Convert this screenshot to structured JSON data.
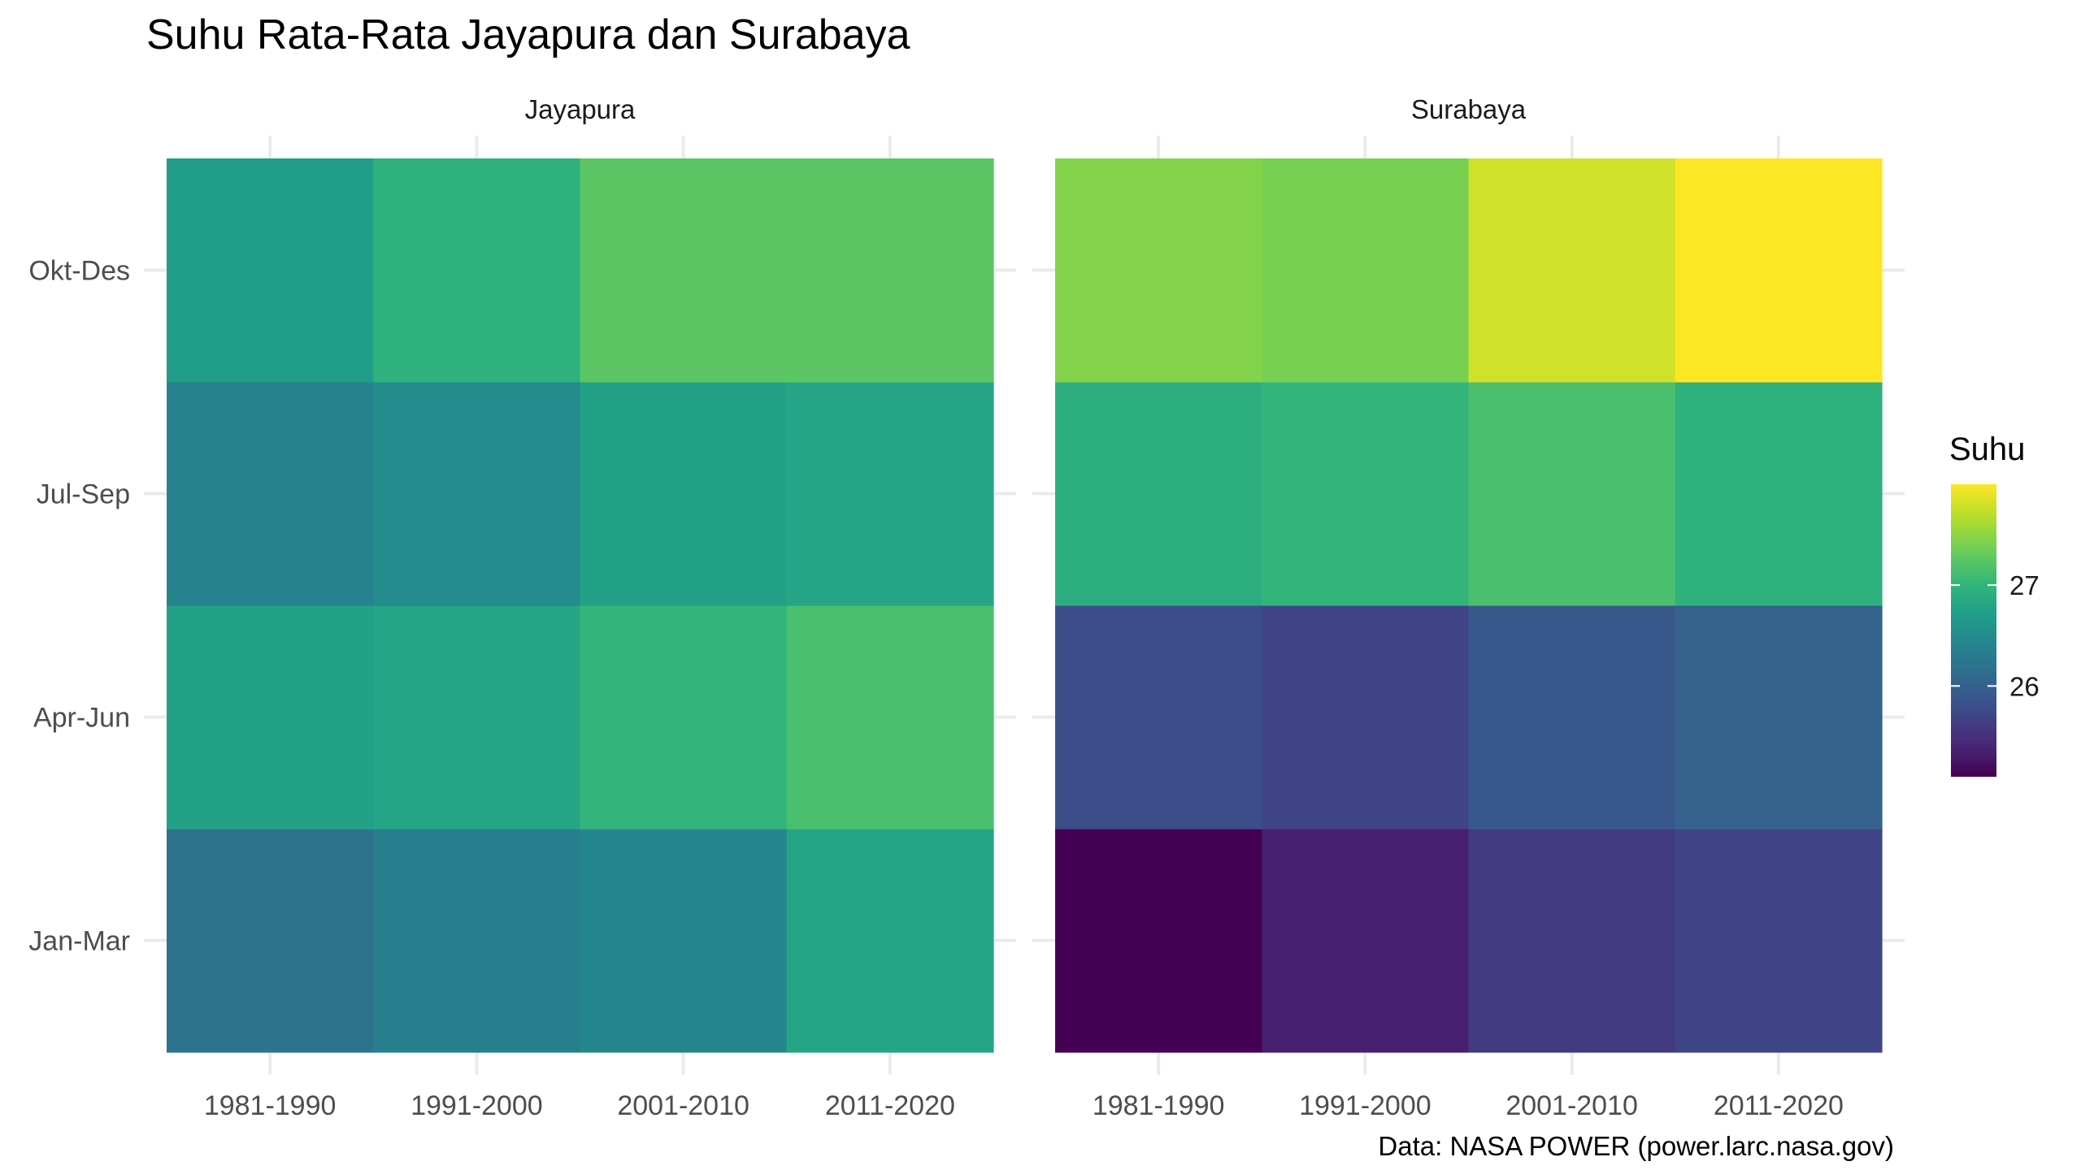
{
  "chart_data": {
    "type": "heatmap",
    "title": "Suhu Rata-Rata Jayapura dan Surabaya",
    "caption": "Data: NASA POWER (power.larc.nasa.gov)",
    "x_categories": [
      "1981-1990",
      "1991-2000",
      "2001-2010",
      "2011-2020"
    ],
    "y_categories": [
      "Jan-Mar",
      "Apr-Jun",
      "Jul-Sep",
      "Okt-Des"
    ],
    "legend": {
      "title": "Suhu",
      "position": "right",
      "ticks": [
        26,
        27
      ],
      "range": [
        25.1,
        28.0
      ],
      "palette": [
        "#440154",
        "#482878",
        "#3e4989",
        "#31688e",
        "#26828e",
        "#1f9e89",
        "#35b779",
        "#6ece58",
        "#b5de2b",
        "#fde725"
      ]
    },
    "grid": true,
    "facets": [
      {
        "name": "Jayapura",
        "cells": [
          {
            "x": "1981-1990",
            "y": "Jan-Mar",
            "value": 26.2
          },
          {
            "x": "1991-2000",
            "y": "Jan-Mar",
            "value": 26.35
          },
          {
            "x": "2001-2010",
            "y": "Jan-Mar",
            "value": 26.45
          },
          {
            "x": "2011-2020",
            "y": "Jan-Mar",
            "value": 26.8
          },
          {
            "x": "1981-1990",
            "y": "Apr-Jun",
            "value": 26.75
          },
          {
            "x": "1991-2000",
            "y": "Apr-Jun",
            "value": 26.8
          },
          {
            "x": "2001-2010",
            "y": "Apr-Jun",
            "value": 27.0
          },
          {
            "x": "2011-2020",
            "y": "Apr-Jun",
            "value": 27.15
          },
          {
            "x": "1981-1990",
            "y": "Jul-Sep",
            "value": 26.4
          },
          {
            "x": "1991-2000",
            "y": "Jul-Sep",
            "value": 26.5
          },
          {
            "x": "2001-2010",
            "y": "Jul-Sep",
            "value": 26.75
          },
          {
            "x": "2011-2020",
            "y": "Jul-Sep",
            "value": 26.8
          },
          {
            "x": "1981-1990",
            "y": "Okt-Des",
            "value": 26.7
          },
          {
            "x": "1991-2000",
            "y": "Okt-Des",
            "value": 26.95
          },
          {
            "x": "2001-2010",
            "y": "Okt-Des",
            "value": 27.25
          },
          {
            "x": "2011-2020",
            "y": "Okt-Des",
            "value": 27.25
          }
        ]
      },
      {
        "name": "Surabaya",
        "cells": [
          {
            "x": "1981-1990",
            "y": "Jan-Mar",
            "value": 25.1
          },
          {
            "x": "1991-2000",
            "y": "Jan-Mar",
            "value": 25.35
          },
          {
            "x": "2001-2010",
            "y": "Jan-Mar",
            "value": 25.6
          },
          {
            "x": "2011-2020",
            "y": "Jan-Mar",
            "value": 25.7
          },
          {
            "x": "1981-1990",
            "y": "Apr-Jun",
            "value": 25.8
          },
          {
            "x": "1991-2000",
            "y": "Apr-Jun",
            "value": 25.7
          },
          {
            "x": "2001-2010",
            "y": "Apr-Jun",
            "value": 25.9
          },
          {
            "x": "2011-2020",
            "y": "Apr-Jun",
            "value": 26.0
          },
          {
            "x": "1981-1990",
            "y": "Jul-Sep",
            "value": 26.9
          },
          {
            "x": "1991-2000",
            "y": "Jul-Sep",
            "value": 27.0
          },
          {
            "x": "2001-2010",
            "y": "Jul-Sep",
            "value": 27.15
          },
          {
            "x": "2011-2020",
            "y": "Jul-Sep",
            "value": 26.95
          },
          {
            "x": "1981-1990",
            "y": "Okt-Des",
            "value": 27.45
          },
          {
            "x": "1991-2000",
            "y": "Okt-Des",
            "value": 27.4
          },
          {
            "x": "2001-2010",
            "y": "Okt-Des",
            "value": 27.8
          },
          {
            "x": "2011-2020",
            "y": "Okt-Des",
            "value": 28.0
          }
        ]
      }
    ]
  }
}
